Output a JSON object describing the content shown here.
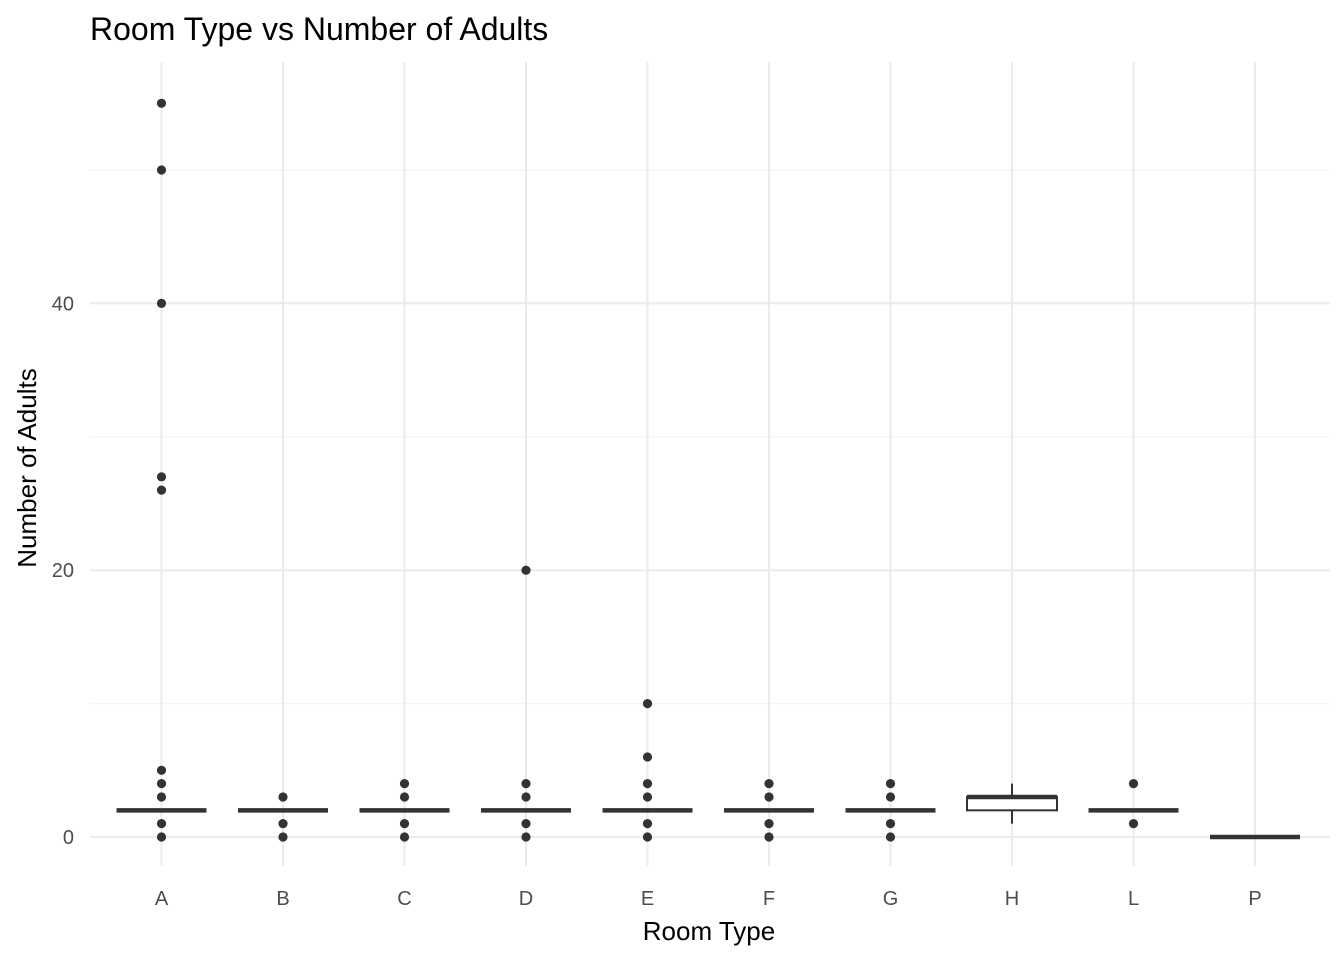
{
  "chart_data": {
    "type": "box",
    "title": "Room Type vs Number of Adults",
    "xlabel": "Room Type",
    "ylabel": "Number of Adults",
    "ylim": [
      -2,
      57
    ],
    "y_ticks": [
      0,
      20,
      40
    ],
    "y_minor_ticks": [
      10,
      30,
      50
    ],
    "grid": true,
    "categories": [
      "A",
      "B",
      "C",
      "D",
      "E",
      "F",
      "G",
      "H",
      "L",
      "P"
    ],
    "boxes": [
      {
        "category": "A",
        "min": 2,
        "q1": 2,
        "median": 2,
        "q3": 2,
        "max": 2,
        "outliers": [
          0,
          1,
          3,
          4,
          5,
          26,
          27,
          40,
          50,
          55
        ]
      },
      {
        "category": "B",
        "min": 2,
        "q1": 2,
        "median": 2,
        "q3": 2,
        "max": 2,
        "outliers": [
          0,
          1,
          3
        ]
      },
      {
        "category": "C",
        "min": 2,
        "q1": 2,
        "median": 2,
        "q3": 2,
        "max": 2,
        "outliers": [
          0,
          1,
          3,
          4
        ]
      },
      {
        "category": "D",
        "min": 2,
        "q1": 2,
        "median": 2,
        "q3": 2,
        "max": 2,
        "outliers": [
          0,
          1,
          3,
          4,
          20
        ]
      },
      {
        "category": "E",
        "min": 2,
        "q1": 2,
        "median": 2,
        "q3": 2,
        "max": 2,
        "outliers": [
          0,
          1,
          3,
          4,
          6,
          10
        ]
      },
      {
        "category": "F",
        "min": 2,
        "q1": 2,
        "median": 2,
        "q3": 2,
        "max": 2,
        "outliers": [
          0,
          1,
          3,
          4
        ]
      },
      {
        "category": "G",
        "min": 2,
        "q1": 2,
        "median": 2,
        "q3": 2,
        "max": 2,
        "outliers": [
          0,
          1,
          3,
          4
        ]
      },
      {
        "category": "H",
        "min": 1,
        "q1": 2,
        "median": 3,
        "q3": 3,
        "max": 4,
        "outliers": []
      },
      {
        "category": "L",
        "min": 2,
        "q1": 2,
        "median": 2,
        "q3": 2,
        "max": 2,
        "outliers": [
          1,
          4
        ]
      },
      {
        "category": "P",
        "min": 0,
        "q1": 0,
        "median": 0,
        "q3": 0,
        "max": 0,
        "outliers": []
      }
    ]
  }
}
